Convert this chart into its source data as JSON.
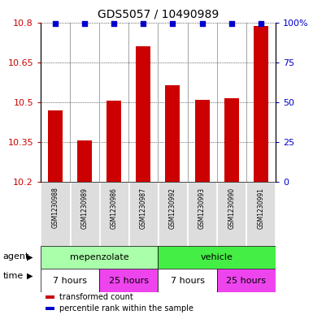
{
  "title": "GDS5057 / 10490989",
  "samples": [
    "GSM1230988",
    "GSM1230989",
    "GSM1230986",
    "GSM1230987",
    "GSM1230992",
    "GSM1230993",
    "GSM1230990",
    "GSM1230991"
  ],
  "values": [
    10.47,
    10.355,
    10.505,
    10.71,
    10.565,
    10.51,
    10.515,
    10.785
  ],
  "percentiles": [
    99,
    99,
    99,
    99,
    99,
    99,
    99,
    99
  ],
  "y_min": 10.2,
  "y_max": 10.8,
  "y_ticks": [
    10.2,
    10.35,
    10.5,
    10.65,
    10.8
  ],
  "y2_ticks": [
    0,
    25,
    50,
    75,
    100
  ],
  "bar_color": "#cc0000",
  "dot_color": "#0000cc",
  "agent_labels": [
    {
      "label": "mepenzolate",
      "start": 0,
      "end": 4,
      "color": "#aaffaa"
    },
    {
      "label": "vehicle",
      "start": 4,
      "end": 8,
      "color": "#44ee44"
    }
  ],
  "time_labels": [
    {
      "label": "7 hours",
      "start": 0,
      "end": 2,
      "color": "#ffffff"
    },
    {
      "label": "25 hours",
      "start": 2,
      "end": 4,
      "color": "#ee44ee"
    },
    {
      "label": "7 hours",
      "start": 4,
      "end": 6,
      "color": "#ffffff"
    },
    {
      "label": "25 hours",
      "start": 6,
      "end": 8,
      "color": "#ee44ee"
    }
  ],
  "legend_items": [
    {
      "color": "#cc0000",
      "label": "transformed count"
    },
    {
      "color": "#0000cc",
      "label": "percentile rank within the sample"
    }
  ],
  "xlabel_agent": "agent",
  "xlabel_time": "time",
  "bg_color": "#dddddd"
}
